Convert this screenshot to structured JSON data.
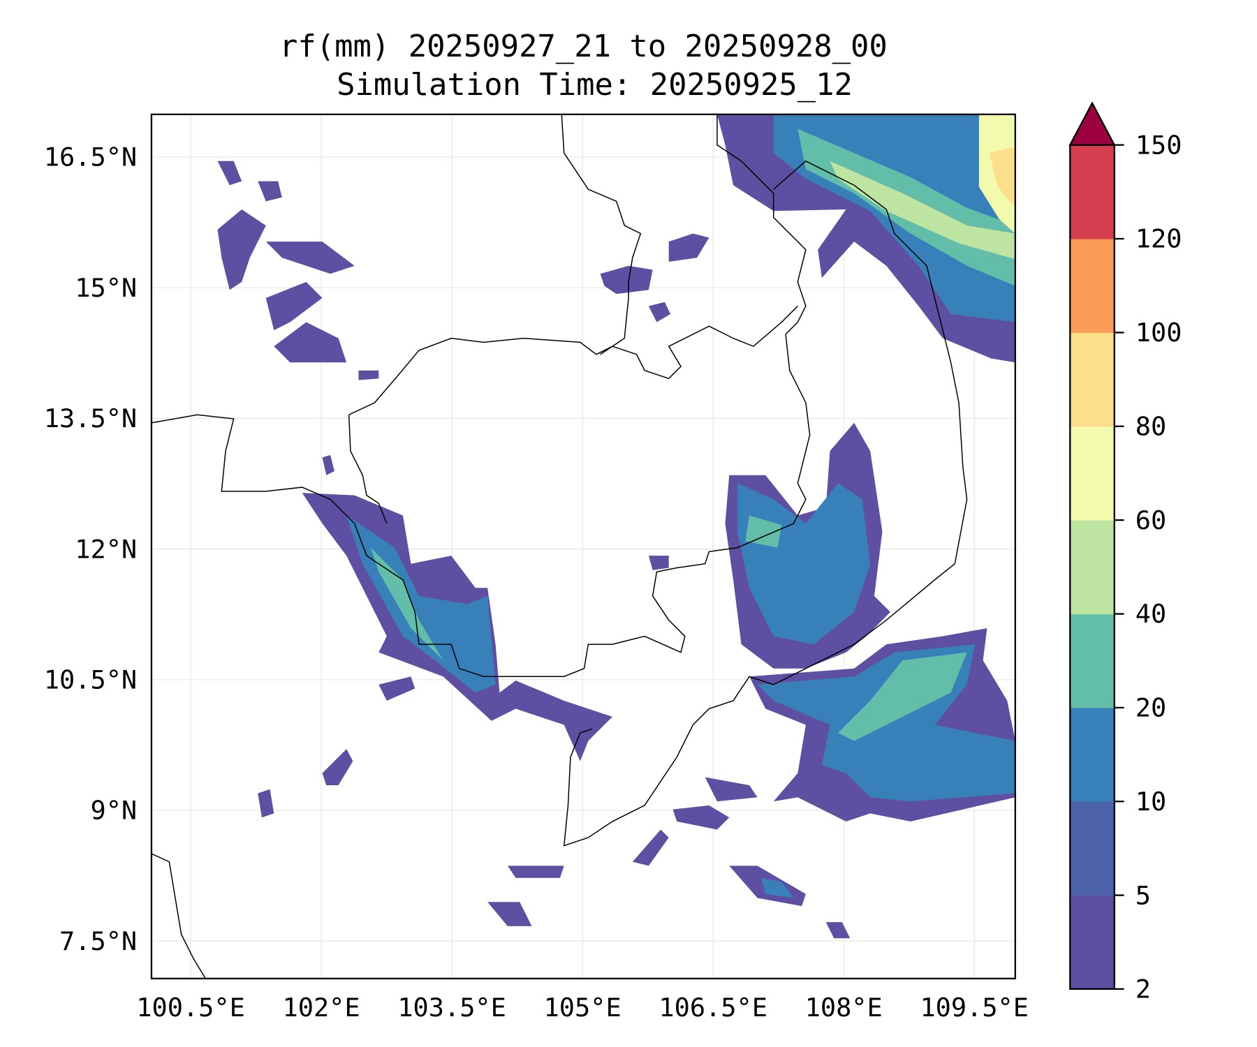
{
  "chart_data": {
    "type": "heatmap",
    "subtype": "filled-contour map",
    "title": "rf(mm) 20250927_21 to 20250928_00",
    "subtitle": "Simulation Time: 20250925_12",
    "xlabel": "",
    "ylabel": "",
    "xlim": [
      100.05,
      109.97
    ],
    "ylim": [
      7.07,
      16.99
    ],
    "x_ticks": [
      100.5,
      102,
      103.5,
      105,
      106.5,
      108,
      109.5
    ],
    "x_tick_labels": [
      "100.5°E",
      "102°E",
      "103.5°E",
      "105°E",
      "106.5°E",
      "108°E",
      "109.5°E"
    ],
    "y_ticks": [
      16.5,
      15,
      13.5,
      12,
      10.5,
      9,
      7.5
    ],
    "y_tick_labels": [
      "16.5°N",
      "15°N",
      "13.5°N",
      "12°N",
      "10.5°N",
      "9°N",
      "7.5°N"
    ],
    "grid": true,
    "colorbar": {
      "placement": "right",
      "levels": [
        2,
        5,
        10,
        20,
        40,
        60,
        80,
        100,
        120,
        150
      ],
      "level_labels": [
        "2",
        "5",
        "10",
        "20",
        "40",
        "60",
        "80",
        "100",
        "120",
        "150"
      ],
      "colors": [
        "#5e4fa2",
        "#4c63ab",
        "#3880b9",
        "#62bda9",
        "#bde4a1",
        "#f4faad",
        "#fddf8b",
        "#fa9c58",
        "#d53f4f"
      ],
      "extend_color": "#9e0142",
      "extend": "max"
    }
  }
}
